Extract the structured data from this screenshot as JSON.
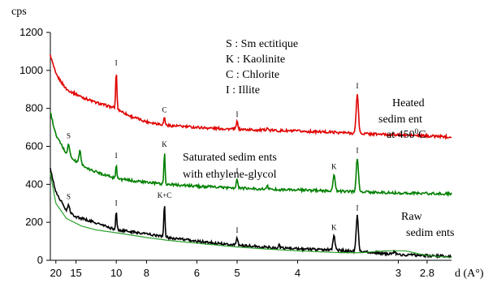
{
  "chart_data": {
    "type": "line",
    "ylabel": "cps",
    "xlabel": "d (A°)",
    "ylim": [
      0,
      1200
    ],
    "y_ticks": [
      "0",
      "200",
      "400",
      "600",
      "800",
      "1000",
      "1200"
    ],
    "x_ticks": [
      {
        "label": "20",
        "d": 20
      },
      {
        "label": "15",
        "d": 15
      },
      {
        "label": "10",
        "d": 10
      },
      {
        "label": "8",
        "d": 8
      },
      {
        "label": "6",
        "d": 6
      },
      {
        "label": "5",
        "d": 5
      },
      {
        "label": "4",
        "d": 4
      },
      {
        "label": "3",
        "d": 3
      },
      {
        "label": "2.8",
        "d": 2.8
      }
    ],
    "x_scale": "reciprocal",
    "legend": [
      "S : Sm ectitique",
      "K : Kaolinite",
      "C : Chlorite",
      "I  :  Illite"
    ],
    "series": [
      {
        "name": "Heated sedim ent at 450°C",
        "label_lines": [
          "Heated",
          "sedim ent",
          "at 450"
        ],
        "label_sup": "0",
        "label_tail": "C",
        "color": "#e00000",
        "baseline": [
          [
            22,
            1080
          ],
          [
            20,
            980
          ],
          [
            17,
            900
          ],
          [
            14,
            860
          ],
          [
            12,
            830
          ],
          [
            10.6,
            810
          ],
          [
            10,
            800
          ],
          [
            9,
            760
          ],
          [
            8,
            730
          ],
          [
            7,
            710
          ],
          [
            6,
            700
          ],
          [
            5.5,
            695
          ],
          [
            5,
            690
          ],
          [
            4.5,
            685
          ],
          [
            4,
            680
          ],
          [
            3.6,
            675
          ],
          [
            3.4,
            670
          ],
          [
            3.2,
            665
          ],
          [
            3,
            660
          ],
          [
            2.8,
            655
          ],
          [
            2.65,
            650
          ]
        ],
        "peaks": [
          {
            "d": 10.0,
            "h": 200,
            "w": 0.05,
            "tag": "I"
          },
          {
            "d": 7.15,
            "h": 40,
            "w": 0.04,
            "tag": "C"
          },
          {
            "d": 5.0,
            "h": 40,
            "w": 0.035,
            "tag": "I"
          },
          {
            "d": 4.45,
            "h": 15,
            "w": 0.03,
            "tag": ""
          },
          {
            "d": 3.34,
            "h": 210,
            "w": 0.03,
            "tag": "I"
          }
        ]
      },
      {
        "name": "Saturated sediments with ethylene-glycol",
        "label_lines": [
          "Saturated sedim ents",
          "with ethylene-glycol"
        ],
        "color": "#008000",
        "baseline": [
          [
            22,
            780
          ],
          [
            20,
            660
          ],
          [
            17,
            560
          ],
          [
            15,
            520
          ],
          [
            13,
            480
          ],
          [
            11,
            450
          ],
          [
            10,
            430
          ],
          [
            8,
            410
          ],
          [
            7,
            400
          ],
          [
            6,
            390
          ],
          [
            5,
            380
          ],
          [
            4.5,
            375
          ],
          [
            4,
            370
          ],
          [
            3.6,
            365
          ],
          [
            3.3,
            360
          ],
          [
            3,
            355
          ],
          [
            2.8,
            352
          ],
          [
            2.65,
            350
          ]
        ],
        "peaks": [
          {
            "d": 16.5,
            "h": 60,
            "w": 0.14,
            "tag": "S"
          },
          {
            "d": 14.3,
            "h": 70,
            "w": 0.12,
            "tag": ""
          },
          {
            "d": 10.0,
            "h": 80,
            "w": 0.05,
            "tag": "I"
          },
          {
            "d": 7.15,
            "h": 170,
            "w": 0.035,
            "tag": "K"
          },
          {
            "d": 5.0,
            "h": 50,
            "w": 0.03,
            "tag": "I"
          },
          {
            "d": 4.45,
            "h": 20,
            "w": 0.03,
            "tag": ""
          },
          {
            "d": 3.57,
            "h": 90,
            "w": 0.03,
            "tag": "K"
          },
          {
            "d": 3.34,
            "h": 180,
            "w": 0.03,
            "tag": "I"
          }
        ]
      },
      {
        "name": "Raw sedim ents",
        "label_lines": [
          "Raw",
          "sedim ents"
        ],
        "color": "#000000",
        "baseline": [
          [
            22,
            480
          ],
          [
            20,
            360
          ],
          [
            17,
            260
          ],
          [
            15,
            230
          ],
          [
            13,
            210
          ],
          [
            11,
            180
          ],
          [
            10,
            160
          ],
          [
            8,
            140
          ],
          [
            7,
            120
          ],
          [
            6,
            100
          ],
          [
            5,
            80
          ],
          [
            4.5,
            70
          ],
          [
            4,
            60
          ],
          [
            3.6,
            55
          ],
          [
            3.3,
            45
          ],
          [
            3,
            30
          ],
          [
            2.8,
            25
          ],
          [
            2.65,
            20
          ]
        ],
        "peaks": [
          {
            "d": 16.5,
            "h": 40,
            "w": 0.12,
            "tag": "S"
          },
          {
            "d": 10.0,
            "h": 100,
            "w": 0.05,
            "tag": "I"
          },
          {
            "d": 7.15,
            "h": 180,
            "w": 0.035,
            "tag": "K+C"
          },
          {
            "d": 5.0,
            "h": 40,
            "w": 0.03,
            "tag": "I"
          },
          {
            "d": 4.26,
            "h": 20,
            "w": 0.02,
            "tag": ""
          },
          {
            "d": 3.57,
            "h": 80,
            "w": 0.03,
            "tag": "K"
          },
          {
            "d": 3.34,
            "h": 190,
            "w": 0.03,
            "tag": "I"
          },
          {
            "d": 3.03,
            "h": 20,
            "w": 0.02,
            "tag": ""
          }
        ]
      },
      {
        "name": "",
        "color": "#2aa02a",
        "baseline": [
          [
            22,
            460
          ],
          [
            20,
            300
          ],
          [
            17,
            220
          ],
          [
            14,
            180
          ],
          [
            12,
            160
          ],
          [
            10,
            145
          ],
          [
            8,
            120
          ],
          [
            7,
            105
          ],
          [
            6,
            90
          ],
          [
            5,
            70
          ],
          [
            4.5,
            60
          ],
          [
            4,
            50
          ],
          [
            3.5,
            40
          ],
          [
            3.3,
            40
          ],
          [
            3.1,
            50
          ],
          [
            2.95,
            50
          ],
          [
            2.8,
            25
          ],
          [
            2.65,
            15
          ]
        ],
        "peaks": []
      }
    ]
  }
}
